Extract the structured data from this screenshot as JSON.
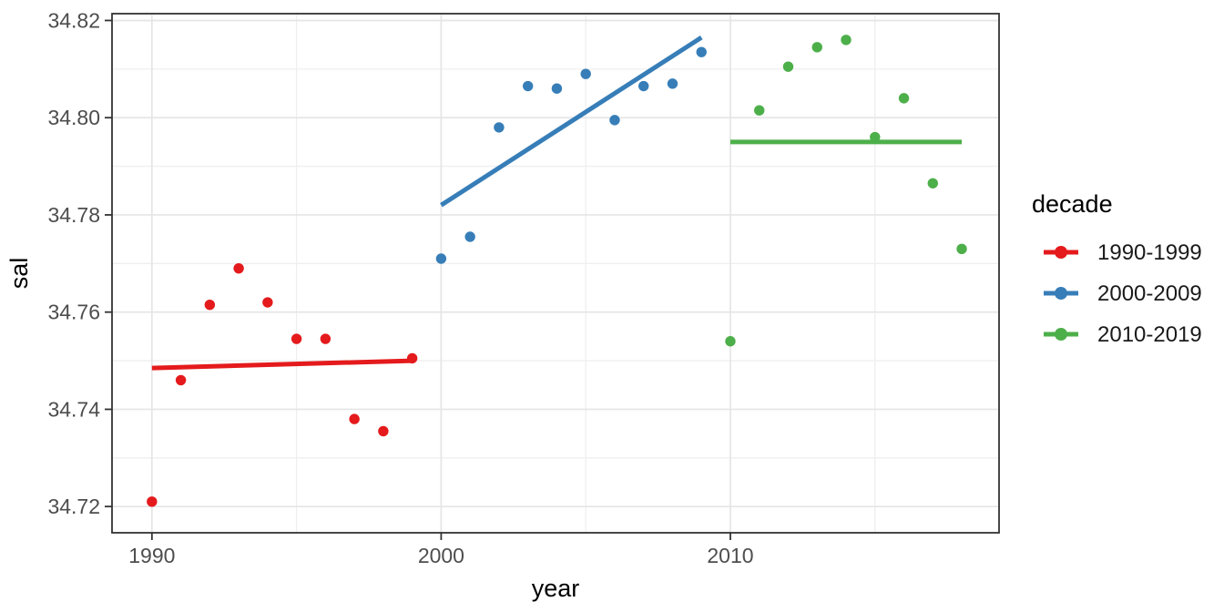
{
  "chart_data": {
    "type": "scatter",
    "title": "",
    "xlabel": "year",
    "ylabel": "sal",
    "xlim": [
      1988.62,
      2019.29
    ],
    "ylim": [
      34.7146,
      34.8214
    ],
    "grid": true,
    "x_major_ticks": [
      1990,
      2000,
      2010
    ],
    "x_major_tick_labels": [
      "1990",
      "2000",
      "2010"
    ],
    "x_minor_ticks": [
      1995,
      2005,
      2015
    ],
    "y_major_ticks": [
      34.72,
      34.74,
      34.76,
      34.78,
      34.8,
      34.82
    ],
    "y_major_tick_labels": [
      "34.72",
      "34.74",
      "34.76",
      "34.78",
      "34.80",
      "34.82"
    ],
    "y_minor_ticks": [
      34.73,
      34.75,
      34.77,
      34.79,
      34.81
    ],
    "legend": {
      "title": "decade",
      "position": "right",
      "entries": [
        {
          "label": "1990-1999",
          "color": "#E41A1C"
        },
        {
          "label": "2000-2009",
          "color": "#377EB8"
        },
        {
          "label": "2010-2019",
          "color": "#4DAF4A"
        }
      ]
    },
    "series": [
      {
        "name": "1990-1999",
        "color": "#E41A1C",
        "x": [
          1990,
          1991,
          1992,
          1993,
          1994,
          1995,
          1996,
          1997,
          1998,
          1999
        ],
        "y": [
          34.721,
          34.746,
          34.7615,
          34.769,
          34.762,
          34.7545,
          34.7545,
          34.738,
          34.7355,
          34.7505
        ],
        "trend": {
          "x1": 1990,
          "y1": 34.7485,
          "x2": 1999,
          "y2": 34.75
        }
      },
      {
        "name": "2000-2009",
        "color": "#377EB8",
        "x": [
          2000,
          2001,
          2002,
          2003,
          2004,
          2005,
          2006,
          2007,
          2008,
          2009
        ],
        "y": [
          34.771,
          34.7755,
          34.798,
          34.8065,
          34.806,
          34.809,
          34.7995,
          34.8065,
          34.807,
          34.8135
        ],
        "trend": {
          "x1": 2000,
          "y1": 34.782,
          "x2": 2009,
          "y2": 34.8165
        }
      },
      {
        "name": "2010-2019",
        "color": "#4DAF4A",
        "x": [
          2010,
          2011,
          2012,
          2013,
          2014,
          2015,
          2016,
          2017,
          2018
        ],
        "y": [
          34.754,
          34.8015,
          34.8105,
          34.8145,
          34.816,
          34.796,
          34.804,
          34.7865,
          34.773
        ],
        "trend": {
          "x1": 2010,
          "y1": 34.795,
          "x2": 2018,
          "y2": 34.795
        }
      }
    ],
    "style": {
      "panel_background": "#ffffff",
      "panel_border_color": "#333333",
      "grid_major_color": "#e5e5e5",
      "grid_minor_color": "#efefef",
      "tick_color": "#333333",
      "tick_label_color": "#4d4d4d",
      "point_radius": 5.7,
      "trend_width": 5
    }
  }
}
